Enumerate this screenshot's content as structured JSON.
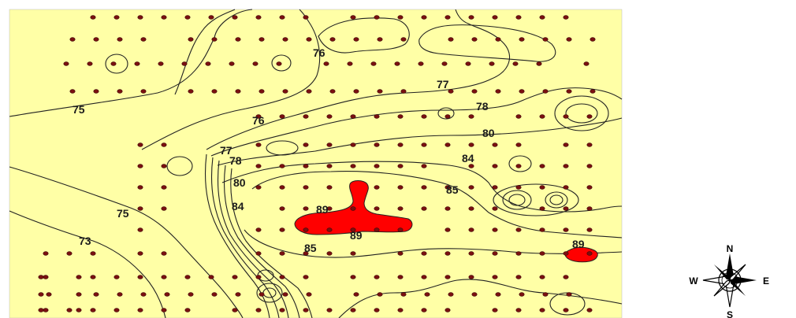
{
  "map": {
    "background_color": "#ffffa6",
    "high_zone_color": "#ff0000",
    "contour_color": "#222222",
    "point_color": "#7a1010",
    "contour_labels": [
      {
        "id": "76a",
        "text": "76"
      },
      {
        "id": "77a",
        "text": "77"
      },
      {
        "id": "78a",
        "text": "78"
      },
      {
        "id": "75a",
        "text": "75"
      },
      {
        "id": "76b",
        "text": "76"
      },
      {
        "id": "80a",
        "text": "80"
      },
      {
        "id": "84a",
        "text": "84"
      },
      {
        "id": "77b",
        "text": "77"
      },
      {
        "id": "78b",
        "text": "78"
      },
      {
        "id": "80b",
        "text": "80"
      },
      {
        "id": "85a",
        "text": "85"
      },
      {
        "id": "84b",
        "text": "84"
      },
      {
        "id": "89a",
        "text": "89"
      },
      {
        "id": "75b",
        "text": "75"
      },
      {
        "id": "89b",
        "text": "89"
      },
      {
        "id": "73a",
        "text": "73"
      },
      {
        "id": "85b",
        "text": "85"
      },
      {
        "id": "89c",
        "text": "89"
      }
    ]
  },
  "compass": {
    "north": "N",
    "south": "S",
    "east": "E",
    "west": "W",
    "icon": "compass-rose-icon"
  }
}
